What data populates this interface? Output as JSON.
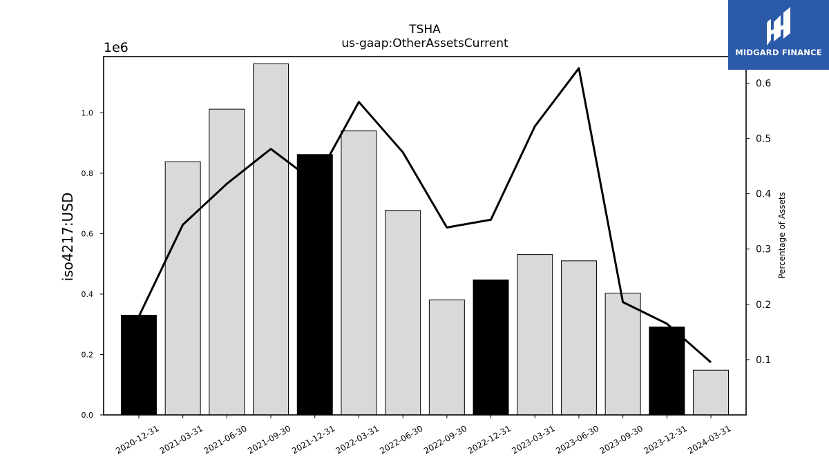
{
  "chart_data": {
    "type": "bar",
    "title": "TSHA",
    "subtitle": "us-gaap:OtherAssetsCurrent",
    "ylabel": "iso4217:USD",
    "y_multiplier": "1e6",
    "y2label": "Percentage of Assets",
    "categories": [
      "2020-12-31",
      "2021-03-31",
      "2021-06-30",
      "2021-09-30",
      "2021-12-31",
      "2022-03-31",
      "2022-06-30",
      "2022-09-30",
      "2022-12-31",
      "2023-03-31",
      "2023-06-30",
      "2023-09-30",
      "2023-12-31",
      "2024-03-31"
    ],
    "values": [
      330000,
      838000,
      1012000,
      1162000,
      862000,
      940000,
      677000,
      381000,
      447000,
      531000,
      510000,
      403000,
      291000,
      148000
    ],
    "bar_colors": [
      "#000000",
      "#d9d9d9",
      "#d9d9d9",
      "#d9d9d9",
      "#000000",
      "#d9d9d9",
      "#d9d9d9",
      "#d9d9d9",
      "#000000",
      "#d9d9d9",
      "#d9d9d9",
      "#d9d9d9",
      "#000000",
      "#d9d9d9"
    ],
    "line_values": [
      0.178,
      0.344,
      0.418,
      0.481,
      0.421,
      0.566,
      0.475,
      0.339,
      0.353,
      0.522,
      0.627,
      0.204,
      0.165,
      0.095
    ],
    "ylim": [
      0,
      1186000
    ],
    "y2lim": [
      0,
      0.648
    ],
    "yticks": [
      0.0,
      0.2,
      0.4,
      0.6,
      0.8,
      1.0
    ],
    "yticklabels": [
      "0.0",
      "0.2",
      "0.4",
      "0.6",
      "0.8",
      "1.0"
    ],
    "y2ticks": [
      0.1,
      0.2,
      0.3,
      0.4,
      0.5,
      0.6
    ],
    "y2ticklabels": [
      "0.1",
      "0.2",
      "0.3",
      "0.4",
      "0.5",
      "0.6"
    ],
    "grid": false
  },
  "logo": {
    "text": "MIDGARD FINANCE"
  }
}
